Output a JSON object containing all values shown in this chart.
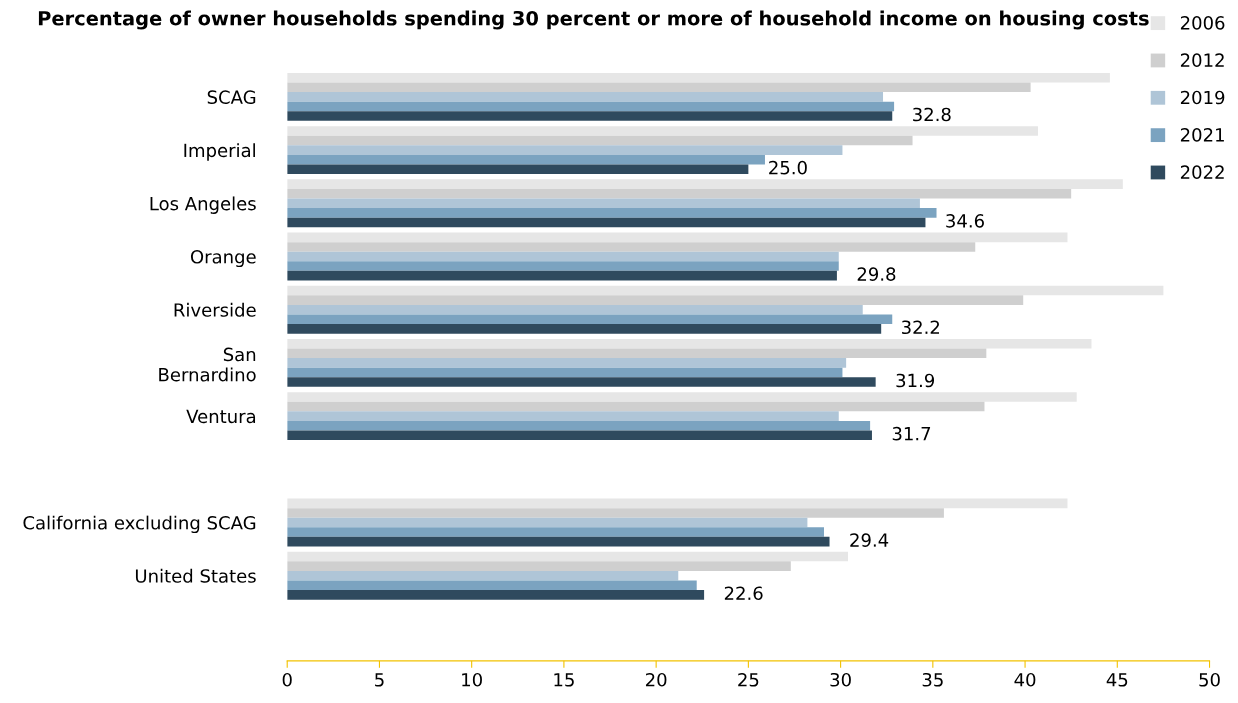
{
  "chart_data": {
    "type": "bar",
    "orientation": "horizontal",
    "title": "Percentage of owner households spending 30 percent or more of household income on housing costs",
    "categories": [
      "SCAG",
      "Imperial",
      "Los Angeles",
      "Orange",
      "Riverside",
      "San\nBernardino",
      "Ventura",
      null,
      "California excluding SCAG",
      "United States"
    ],
    "series": [
      {
        "name": "2006",
        "color": "#e6e6e6",
        "values": [
          44.6,
          40.7,
          45.3,
          42.3,
          47.5,
          43.6,
          42.8,
          null,
          42.3,
          30.4
        ]
      },
      {
        "name": "2012",
        "color": "#cfcfcf",
        "values": [
          40.3,
          33.9,
          42.5,
          37.3,
          39.9,
          37.9,
          37.8,
          null,
          35.6,
          27.3
        ]
      },
      {
        "name": "2019",
        "color": "#afc5d7",
        "values": [
          32.3,
          30.1,
          34.3,
          29.9,
          31.2,
          30.3,
          29.9,
          null,
          28.2,
          21.2
        ]
      },
      {
        "name": "2021",
        "color": "#7ba3c0",
        "values": [
          32.9,
          25.9,
          35.2,
          29.9,
          32.8,
          30.1,
          31.6,
          null,
          29.1,
          22.2
        ]
      },
      {
        "name": "2022",
        "color": "#2f4a5e",
        "values": [
          32.8,
          25.0,
          34.6,
          29.8,
          32.2,
          31.9,
          31.7,
          null,
          29.4,
          22.6
        ],
        "value_labels": [
          "32.8",
          "25.0",
          "34.6",
          "29.8",
          "32.2",
          "31.9",
          "31.7",
          null,
          "29.4",
          "22.6"
        ]
      }
    ],
    "xlim": [
      0,
      50
    ],
    "xticks": [
      0,
      5,
      10,
      15,
      20,
      25,
      30,
      35,
      40,
      45,
      50
    ],
    "grid": false,
    "legend": "top right"
  }
}
